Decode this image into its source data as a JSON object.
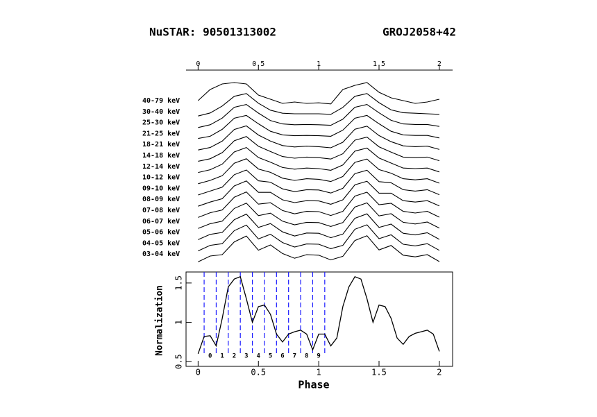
{
  "chart_data": [
    {
      "type": "stacked-line",
      "title": "NuSTAR: 90501313002",
      "subtitle": "GROJ2058+42",
      "x": [
        0,
        0.1,
        0.2,
        0.3,
        0.4,
        0.5,
        0.6,
        0.7,
        0.8,
        0.9,
        1,
        1.1,
        1.2,
        1.3,
        1.4,
        1.5,
        1.6,
        1.7,
        1.8,
        1.9,
        2
      ],
      "xlim": [
        -0.1,
        2.11
      ],
      "xticks": [
        0,
        0.5,
        1,
        1.5,
        2
      ],
      "color": "#000000",
      "series": [
        {
          "name": "40-79 keV",
          "values": [
            0.9,
            1.3,
            1.5,
            1.55,
            1.5,
            1.1,
            0.95,
            0.8,
            0.85,
            0.8,
            0.82,
            0.78,
            1.3,
            1.45,
            1.55,
            1.2,
            1.0,
            0.9,
            0.8,
            0.85,
            0.95
          ]
        },
        {
          "name": "30-40 keV",
          "values": [
            0.74,
            0.85,
            1.1,
            1.45,
            1.55,
            1.2,
            0.95,
            0.84,
            0.82,
            0.82,
            0.82,
            0.8,
            1.05,
            1.45,
            1.55,
            1.22,
            0.96,
            0.86,
            0.84,
            0.82,
            0.8
          ]
        },
        {
          "name": "25-30 keV",
          "values": [
            0.72,
            0.82,
            1.06,
            1.45,
            1.55,
            1.24,
            0.97,
            0.85,
            0.82,
            0.83,
            0.82,
            0.8,
            1.02,
            1.45,
            1.55,
            1.25,
            0.98,
            0.85,
            0.83,
            0.83,
            0.76
          ]
        },
        {
          "name": "21-25 keV",
          "values": [
            0.72,
            0.8,
            1.05,
            1.45,
            1.55,
            1.25,
            0.98,
            0.85,
            0.82,
            0.83,
            0.82,
            0.8,
            1.02,
            1.45,
            1.55,
            1.25,
            0.98,
            0.85,
            0.83,
            0.83,
            0.74
          ]
        },
        {
          "name": "18-21 keV",
          "values": [
            0.7,
            0.79,
            1.02,
            1.44,
            1.57,
            1.24,
            1.02,
            0.86,
            0.81,
            0.84,
            0.82,
            0.78,
            0.98,
            1.45,
            1.56,
            1.22,
            1.0,
            0.85,
            0.82,
            0.84,
            0.72
          ]
        },
        {
          "name": "14-18 keV",
          "values": [
            0.69,
            0.78,
            1.0,
            1.43,
            1.58,
            1.23,
            1.04,
            0.86,
            0.8,
            0.84,
            0.82,
            0.77,
            0.96,
            1.45,
            1.56,
            1.21,
            1.02,
            0.84,
            0.82,
            0.84,
            0.71
          ]
        },
        {
          "name": "12-14 keV",
          "values": [
            0.68,
            0.78,
            0.98,
            1.42,
            1.58,
            1.22,
            1.05,
            0.86,
            0.8,
            0.84,
            0.82,
            0.76,
            0.95,
            1.45,
            1.56,
            1.2,
            1.02,
            0.84,
            0.82,
            0.84,
            0.7
          ]
        },
        {
          "name": "10-12 keV",
          "values": [
            0.67,
            0.79,
            0.96,
            1.41,
            1.57,
            1.2,
            1.08,
            0.87,
            0.79,
            0.85,
            0.83,
            0.75,
            0.93,
            1.44,
            1.56,
            1.18,
            1.05,
            0.85,
            0.81,
            0.85,
            0.69
          ]
        },
        {
          "name": "09-10 keV",
          "values": [
            0.66,
            0.8,
            0.94,
            1.39,
            1.56,
            1.17,
            1.12,
            0.88,
            0.78,
            0.85,
            0.84,
            0.73,
            0.9,
            1.43,
            1.55,
            1.14,
            1.1,
            0.85,
            0.8,
            0.85,
            0.67
          ]
        },
        {
          "name": "08-09 keV",
          "values": [
            0.65,
            0.8,
            0.92,
            1.38,
            1.56,
            1.15,
            1.15,
            0.88,
            0.78,
            0.85,
            0.84,
            0.72,
            0.88,
            1.42,
            1.55,
            1.12,
            1.12,
            0.85,
            0.8,
            0.85,
            0.66
          ]
        },
        {
          "name": "07-08 keV",
          "values": [
            0.64,
            0.81,
            0.91,
            1.37,
            1.56,
            1.12,
            1.17,
            0.89,
            0.77,
            0.86,
            0.85,
            0.71,
            0.86,
            1.41,
            1.55,
            1.1,
            1.15,
            0.86,
            0.8,
            0.86,
            0.65
          ]
        },
        {
          "name": "06-07 keV",
          "values": [
            0.64,
            0.81,
            0.9,
            1.36,
            1.55,
            1.1,
            1.19,
            0.9,
            0.77,
            0.86,
            0.85,
            0.71,
            0.85,
            1.41,
            1.56,
            1.09,
            1.17,
            0.86,
            0.8,
            0.87,
            0.65
          ]
        },
        {
          "name": "05-06 keV",
          "values": [
            0.63,
            0.82,
            0.89,
            1.35,
            1.55,
            1.07,
            1.21,
            0.91,
            0.76,
            0.87,
            0.86,
            0.7,
            0.83,
            1.4,
            1.56,
            1.07,
            1.19,
            0.86,
            0.8,
            0.88,
            0.64
          ]
        },
        {
          "name": "04-05 keV",
          "values": [
            0.62,
            0.82,
            0.88,
            1.35,
            1.55,
            1.05,
            1.22,
            0.92,
            0.76,
            0.87,
            0.86,
            0.7,
            0.82,
            1.4,
            1.56,
            1.06,
            1.2,
            0.86,
            0.8,
            0.88,
            0.64
          ]
        },
        {
          "name": "03-04 keV",
          "values": [
            0.62,
            0.83,
            0.88,
            1.34,
            1.55,
            1.04,
            1.23,
            0.92,
            0.75,
            0.88,
            0.86,
            0.69,
            0.82,
            1.39,
            1.56,
            1.05,
            1.21,
            0.86,
            0.8,
            0.88,
            0.63
          ]
        }
      ]
    },
    {
      "type": "line",
      "xlabel": "Phase",
      "ylabel": "Normalization",
      "x": [
        0,
        0.05,
        0.1,
        0.15,
        0.2,
        0.25,
        0.3,
        0.35,
        0.4,
        0.45,
        0.5,
        0.55,
        0.6,
        0.65,
        0.7,
        0.75,
        0.8,
        0.85,
        0.9,
        0.95,
        1,
        1.05,
        1.1,
        1.15,
        1.2,
        1.25,
        1.3,
        1.35,
        1.4,
        1.45,
        1.5,
        1.55,
        1.6,
        1.65,
        1.7,
        1.75,
        1.8,
        1.85,
        1.9,
        1.95,
        2
      ],
      "values": [
        0.6,
        0.82,
        0.83,
        0.7,
        1.05,
        1.45,
        1.55,
        1.58,
        1.3,
        1.0,
        1.2,
        1.22,
        1.1,
        0.85,
        0.75,
        0.85,
        0.88,
        0.9,
        0.85,
        0.65,
        0.85,
        0.85,
        0.7,
        0.8,
        1.2,
        1.45,
        1.58,
        1.55,
        1.3,
        1.0,
        1.22,
        1.2,
        1.05,
        0.8,
        0.72,
        0.82,
        0.86,
        0.88,
        0.9,
        0.85,
        0.63
      ],
      "color": "#000000",
      "xlim": [
        -0.1,
        2.11
      ],
      "ylim": [
        0.44,
        1.64
      ],
      "xticks": [
        0,
        0.5,
        1,
        1.5,
        2
      ],
      "yticks": [
        0.5,
        1,
        1.5
      ],
      "phase_boundaries": [
        0.05,
        0.15,
        0.25,
        0.35,
        0.45,
        0.55,
        0.65,
        0.75,
        0.85,
        0.95,
        1.05
      ],
      "boundary_color": "#1a1aff",
      "region_labels": [
        "0",
        "1",
        "2",
        "3",
        "4",
        "5",
        "6",
        "7",
        "8",
        "9"
      ],
      "region_label_color": "#ff0000"
    }
  ]
}
